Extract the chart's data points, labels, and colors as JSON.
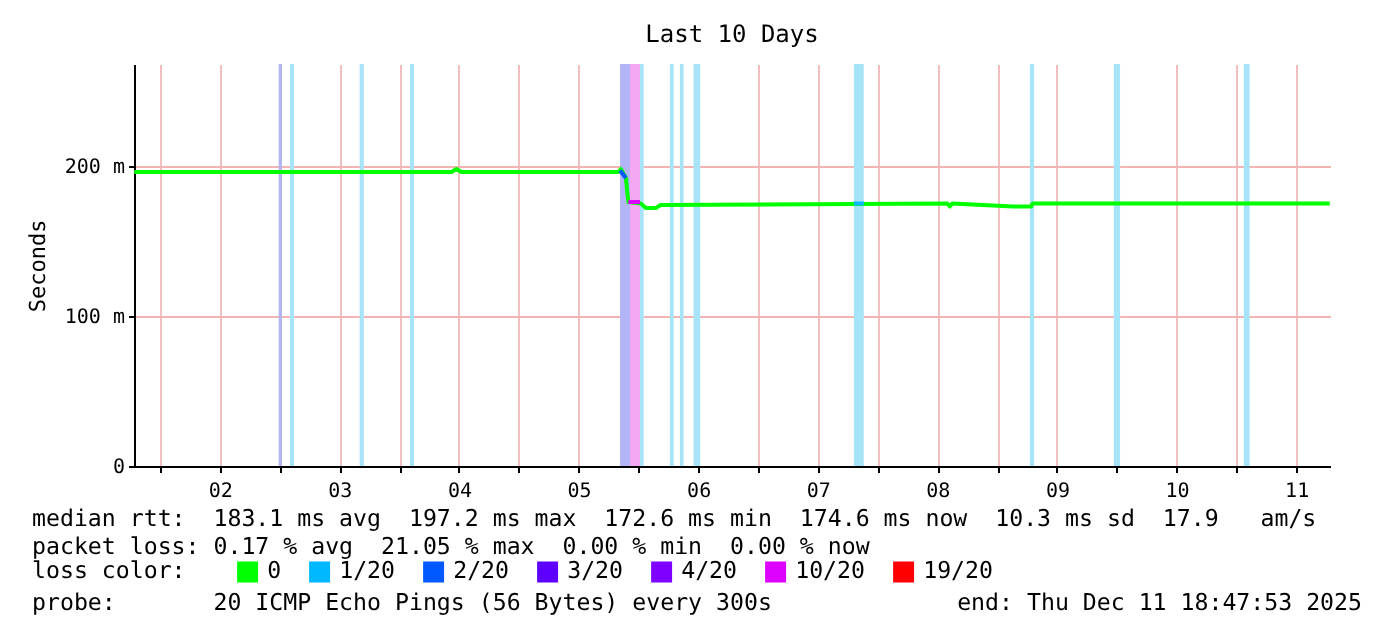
{
  "chart_data": {
    "type": "line",
    "title": "Last 10 Days",
    "ylabel": "Seconds",
    "legend_title": "loss color:",
    "legend": "bottom",
    "xlim": [
      "2025-12-01T18:47:53",
      "2025-12-11T18:47:53"
    ],
    "xticks": [
      {
        "value": "2025-12-02T00:00",
        "label": null
      },
      {
        "value": "2025-12-02T12:00",
        "label": "02"
      },
      {
        "value": "2025-12-03T00:00",
        "label": null
      },
      {
        "value": "2025-12-03T12:00",
        "label": "03"
      },
      {
        "value": "2025-12-04T00:00",
        "label": null
      },
      {
        "value": "2025-12-04T12:00",
        "label": "04"
      },
      {
        "value": "2025-12-05T00:00",
        "label": null
      },
      {
        "value": "2025-12-05T12:00",
        "label": "05"
      },
      {
        "value": "2025-12-06T00:00",
        "label": null
      },
      {
        "value": "2025-12-06T12:00",
        "label": "06"
      },
      {
        "value": "2025-12-07T00:00",
        "label": null
      },
      {
        "value": "2025-12-07T12:00",
        "label": "07"
      },
      {
        "value": "2025-12-08T00:00",
        "label": null
      },
      {
        "value": "2025-12-08T12:00",
        "label": "08"
      },
      {
        "value": "2025-12-09T00:00",
        "label": null
      },
      {
        "value": "2025-12-09T12:00",
        "label": "09"
      },
      {
        "value": "2025-12-10T00:00",
        "label": null
      },
      {
        "value": "2025-12-10T12:00",
        "label": "10"
      },
      {
        "value": "2025-12-11T00:00",
        "label": null
      },
      {
        "value": "2025-12-11T12:00",
        "label": "11"
      }
    ],
    "ylim": [
      0,
      268
    ],
    "yticks": [
      {
        "value": 0,
        "label": "0"
      },
      {
        "value": 100,
        "label": "100 m"
      },
      {
        "value": 200,
        "label": "200 m"
      }
    ],
    "grid": true,
    "series": [
      {
        "name": "0",
        "color": "#00ff00",
        "x": [
          "2025-12-01T18:50",
          "2025-12-04T10:30",
          "2025-12-04T11:30",
          "2025-12-04T12:30",
          "2025-12-05T20:00",
          "2025-12-05T20:30",
          "2025-12-05T21:30",
          "2025-12-05T22:00",
          "2025-12-06T00:30",
          "2025-12-06T01:30",
          "2025-12-06T03:30",
          "2025-12-06T04:30",
          "2025-12-08T14:00",
          "2025-12-08T14:30",
          "2025-12-08T15:00",
          "2025-12-09T03:10",
          "2025-12-09T06:50",
          "2025-12-09T07:10",
          "2025-12-11T18:45"
        ],
        "values": [
          196,
          196,
          198,
          196,
          196,
          198,
          192,
          176,
          175,
          172,
          172,
          174,
          175,
          173,
          175,
          173,
          173,
          175,
          175
        ]
      },
      {
        "name": "1/20",
        "color": "#00b8ff",
        "x": [
          "2025-12-07T19:15",
          "2025-12-07T21:15"
        ],
        "values": [
          175,
          175
        ]
      },
      {
        "name": "2/20",
        "color": "#0059ff",
        "x": [
          "2025-12-05T20:20",
          "2025-12-05T21:30"
        ],
        "values": [
          197,
          192
        ]
      },
      {
        "name": "3/20",
        "color": "#5e00ff"
      },
      {
        "name": "4/20",
        "color": "#7e00ff"
      },
      {
        "name": "10/20",
        "color": "#dd00ff",
        "x": [
          "2025-12-05T22:00",
          "2025-12-06T00:20"
        ],
        "values": [
          176,
          176
        ]
      },
      {
        "name": "19/20",
        "color": "#ff0000"
      }
    ],
    "bands": [
      {
        "axis": "x",
        "from": "2025-12-02T23:50",
        "to": "2025-12-03T00:30",
        "color": "#b4b4f0"
      },
      {
        "axis": "x",
        "from": "2025-12-03T02:05",
        "to": "2025-12-03T02:55",
        "color": "#a8e4f8"
      },
      {
        "axis": "x",
        "from": "2025-12-03T16:05",
        "to": "2025-12-03T16:55",
        "color": "#a8e4f8"
      },
      {
        "axis": "x",
        "from": "2025-12-04T02:10",
        "to": "2025-12-04T03:00",
        "color": "#a8e4f8"
      },
      {
        "axis": "x",
        "from": "2025-12-05T20:20",
        "to": "2025-12-05T22:20",
        "color": "#b4b4f8"
      },
      {
        "axis": "x",
        "from": "2025-12-05T22:20",
        "to": "2025-12-06T00:20",
        "color": "#f4a8f4"
      },
      {
        "axis": "x",
        "from": "2025-12-06T00:20",
        "to": "2025-12-06T01:05",
        "color": "#a8e4f8"
      },
      {
        "axis": "x",
        "from": "2025-12-06T06:20",
        "to": "2025-12-06T07:05",
        "color": "#a8e4f8"
      },
      {
        "axis": "x",
        "from": "2025-12-06T08:20",
        "to": "2025-12-06T09:05",
        "color": "#a8e4f8"
      },
      {
        "axis": "x",
        "from": "2025-12-06T11:05",
        "to": "2025-12-06T12:25",
        "color": "#a8e4f8"
      },
      {
        "axis": "x",
        "from": "2025-12-07T19:15",
        "to": "2025-12-07T21:15",
        "color": "#a8e4f8"
      },
      {
        "axis": "x",
        "from": "2025-12-09T06:35",
        "to": "2025-12-09T07:25",
        "color": "#a8e4f8"
      },
      {
        "axis": "x",
        "from": "2025-12-09T23:25",
        "to": "2025-12-10T00:40",
        "color": "#a8e4f8"
      },
      {
        "axis": "x",
        "from": "2025-12-11T01:30",
        "to": "2025-12-11T02:40",
        "color": "#a8e4f8"
      }
    ],
    "annotations": [
      "median rtt:  183.1 ms avg  197.2 ms max  172.6 ms min  174.6 ms now  10.3 ms sd  17.9   am/s",
      "packet loss: 0.17 % avg  21.05 % max  0.00 % min  0.00 % now",
      "probe:       20 ICMP Echo Pings (56 Bytes) every 300s",
      "end: Thu Dec 11 18:47:53 2025"
    ]
  }
}
